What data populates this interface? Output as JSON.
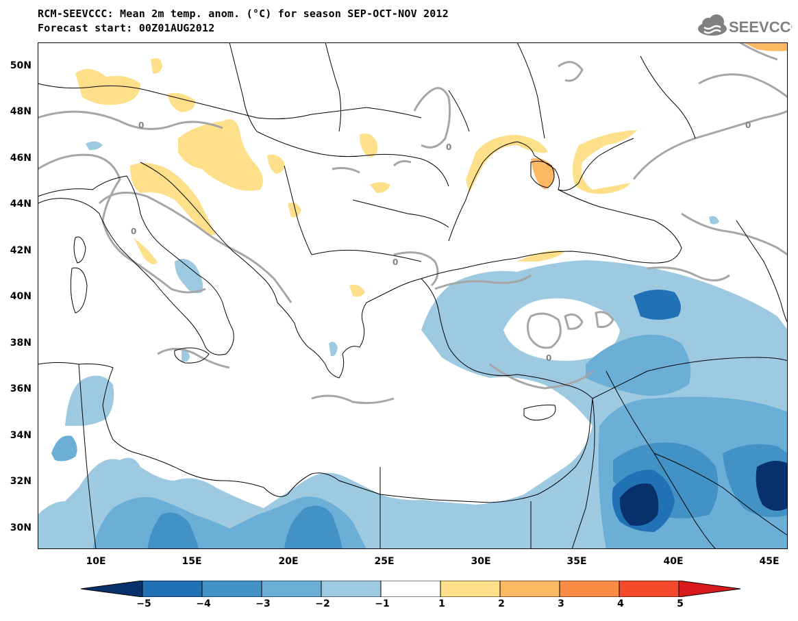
{
  "title": {
    "line1": "RCM-SEEVCCC: Mean 2m temp. anom. (°C) for season SEP-OCT-NOV 2012",
    "line2": "Forecast start: 00Z01AUG2012"
  },
  "logo": {
    "text": "SEEVCCC",
    "icon": "cloud-icon"
  },
  "map": {
    "projection": "latitude-longitude",
    "lat_range": [
      29,
      51
    ],
    "lon_range": [
      7,
      46
    ],
    "lat_labels": [
      "50N",
      "48N",
      "46N",
      "44N",
      "42N",
      "40N",
      "38N",
      "36N",
      "34N",
      "32N",
      "30N"
    ],
    "lon_labels": [
      "10E",
      "15E",
      "20E",
      "25E",
      "30E",
      "35E",
      "40E",
      "45E"
    ],
    "contour_label": "0",
    "contour_color": "#a6a6a6",
    "coastline_color": "#000000"
  },
  "colorbar": {
    "labels": [
      "−5",
      "−4",
      "−3",
      "−2",
      "−1",
      "1",
      "2",
      "3",
      "4",
      "5"
    ],
    "colors": [
      "#08306b",
      "#2171b5",
      "#4292c6",
      "#6baed6",
      "#9ecae1",
      "#ffffff",
      "#fee08b",
      "#fdb863",
      "#f98b45",
      "#f24a2b",
      "#d7191c"
    ]
  }
}
